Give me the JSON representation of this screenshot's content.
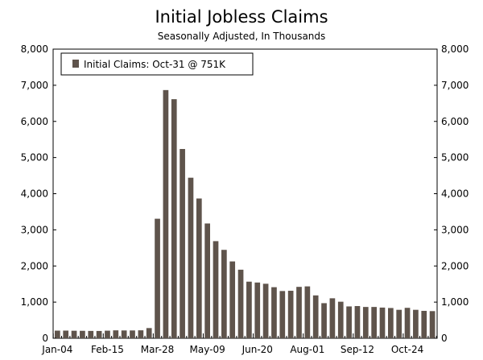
{
  "chart_data": {
    "type": "bar",
    "title": "Initial Jobless Claims",
    "subtitle": "Seasonally Adjusted, In Thousands",
    "xlabel": "",
    "ylabel": "",
    "ylim": [
      0,
      8000
    ],
    "y_ticks": [
      0,
      1000,
      2000,
      3000,
      4000,
      5000,
      6000,
      7000,
      8000
    ],
    "y_tick_labels": [
      "0",
      "1,000",
      "2,000",
      "3,000",
      "4,000",
      "5,000",
      "6,000",
      "7,000",
      "8,000"
    ],
    "x_tick_labels": [
      "Jan-04",
      "Feb-15",
      "Mar-28",
      "May-09",
      "Jun-20",
      "Aug-01",
      "Sep-12",
      "Oct-24"
    ],
    "x_tick_indices": [
      0,
      6,
      12,
      18,
      24,
      30,
      36,
      42
    ],
    "grid": false,
    "legend_position": "top-left",
    "bar_color": "#5f544c",
    "series": [
      {
        "name": "Initial Claims: Oct-31 @ 751K",
        "values": [
          211,
          212,
          208,
          206,
          203,
          202,
          210,
          219,
          216,
          216,
          220,
          282,
          3307,
          6867,
          6615,
          5237,
          4442,
          3867,
          3176,
          2687,
          2446,
          2126,
          1897,
          1566,
          1542,
          1508,
          1413,
          1307,
          1314,
          1422,
          1435,
          1186,
          971,
          1106,
          1011,
          881,
          891,
          866,
          866,
          849,
          837,
          787,
          842,
          787,
          758,
          751
        ]
      }
    ]
  }
}
